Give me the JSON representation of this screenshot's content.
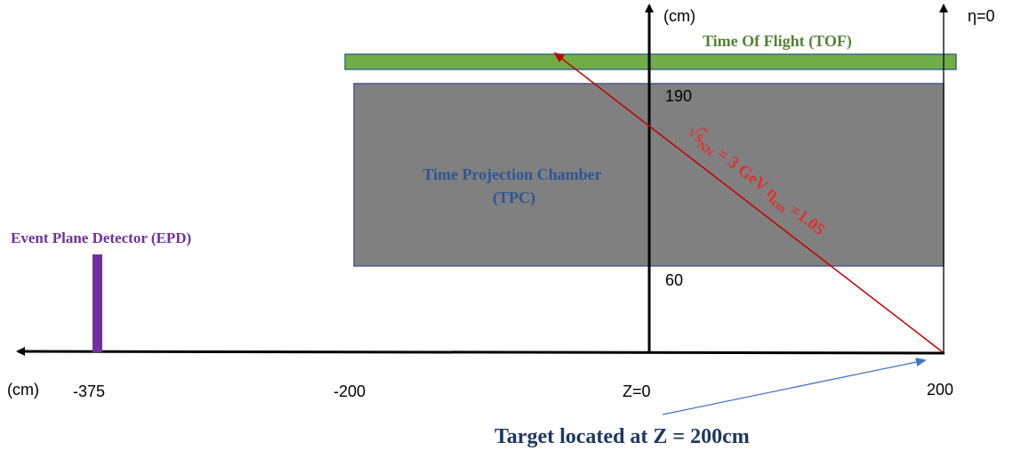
{
  "axes": {
    "vertical_unit": "(cm)",
    "horizontal_unit": "(cm)",
    "eta_label": "η=0",
    "z_ticks": [
      "-375",
      "-200",
      "Z=0",
      "200"
    ],
    "r_ticks": [
      "190",
      "60"
    ]
  },
  "detectors": {
    "tof": {
      "label": "Time Of Flight (TOF)",
      "color": "#70ad47"
    },
    "tpc": {
      "label_line1": "Time Projection Chamber",
      "label_line2": "(TPC)",
      "color": "#808080",
      "text_color": "#2f5597"
    },
    "epd": {
      "label": "Event Plane Detector (EPD)",
      "color": "#7030a0"
    }
  },
  "annotation": {
    "sqrt": "√",
    "s": "s",
    "nn": "NN",
    "equals": " = 3 GeV ",
    "eta": "η",
    "cm": "cm",
    "value": " =1.05",
    "color": "#e03030"
  },
  "target": {
    "label": "Target located at Z = 200cm",
    "color": "#1f3864",
    "arrow_color": "#4472c4"
  }
}
